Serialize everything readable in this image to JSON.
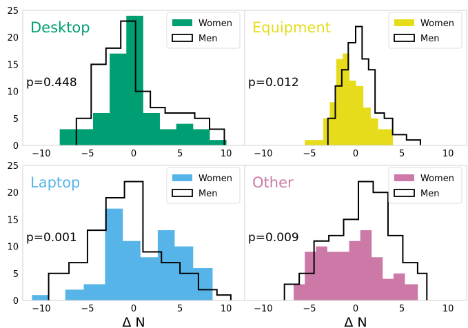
{
  "figure": {
    "xlabel": "Δ N"
  },
  "chart_data": [
    {
      "type": "histogram",
      "title": "Desktop",
      "annotation": "p=0.448",
      "color": "#009E73",
      "xlim": [
        -12,
        12
      ],
      "ylim": [
        0,
        25
      ],
      "xticks": [
        "−10",
        "−5",
        "0",
        "5",
        "10"
      ],
      "yticks": [
        "0",
        "5",
        "10",
        "15",
        "20",
        "25"
      ],
      "xlabel": "",
      "legend": [
        "Women",
        "Men"
      ],
      "legend_position": "top-right",
      "series": [
        {
          "name": "Women",
          "style": "filled",
          "edges": [
            -8,
            -6.2,
            -4.4,
            -2.6,
            -0.8,
            1,
            2.8,
            4.6,
            6.4,
            8.2,
            10
          ],
          "counts": [
            3,
            3,
            6,
            17,
            24,
            6,
            3,
            4,
            3,
            1
          ]
        },
        {
          "name": "Men",
          "style": "step",
          "edges": [
            -6.2,
            -4.6,
            -3,
            -1.4,
            0.2,
            1.8,
            3.4,
            5,
            6.6,
            8.2,
            9.8
          ],
          "counts": [
            5,
            15,
            18,
            23,
            10,
            7,
            6,
            6,
            5,
            3
          ]
        }
      ]
    },
    {
      "type": "histogram",
      "title": "Equipment",
      "annotation": "p=0.012",
      "color": "#E6DC1C",
      "xlim": [
        -12,
        12
      ],
      "ylim": [
        0,
        25
      ],
      "xticks": [
        "−10",
        "−5",
        "0",
        "5",
        "10"
      ],
      "yticks": [],
      "xlabel": "",
      "legend": [
        "Women",
        "Men"
      ],
      "legend_position": "top-right",
      "series": [
        {
          "name": "Women",
          "style": "filled",
          "edges": [
            -5.5,
            -3.5,
            -2.8,
            -2.1,
            -1.4,
            -0.7,
            0,
            0.8,
            1.6,
            2.4,
            4
          ],
          "counts": [
            1,
            5,
            8,
            16,
            17,
            12,
            11,
            7,
            5,
            3
          ]
        },
        {
          "name": "Men",
          "style": "step",
          "edges": [
            -3,
            -2.2,
            -1.5,
            -0.8,
            0,
            0.7,
            1.4,
            2.1,
            3.1,
            4,
            5.5,
            7
          ],
          "counts": [
            5,
            11,
            14,
            19,
            22,
            16,
            14,
            6,
            5,
            2,
            1
          ]
        }
      ]
    },
    {
      "type": "histogram",
      "title": "Laptop",
      "annotation": "p=0.001",
      "color": "#56B4E9",
      "xlim": [
        -12,
        12
      ],
      "ylim": [
        0,
        25
      ],
      "xticks": [
        "−10",
        "−5",
        "0",
        "5",
        "10"
      ],
      "yticks": [
        "0",
        "5",
        "10",
        "15",
        "20",
        "25"
      ],
      "xlabel": "Δ N",
      "legend": [
        "Women",
        "Men"
      ],
      "legend_position": "top-right",
      "series": [
        {
          "name": "Women",
          "style": "filled",
          "edges": [
            -11,
            -9.2,
            -7.4,
            -5.4,
            -3.1,
            -1.2,
            0.7,
            2.6,
            4.4,
            6.4,
            8.5
          ],
          "counts": [
            1,
            0,
            2,
            3,
            17,
            11,
            8,
            13,
            10,
            6
          ]
        },
        {
          "name": "Men",
          "style": "step",
          "edges": [
            -9.2,
            -7,
            -5,
            -3,
            -1,
            1,
            3,
            5,
            7,
            9,
            10.5
          ],
          "counts": [
            5,
            7,
            13,
            19,
            22,
            9,
            7,
            5,
            2,
            1
          ]
        }
      ]
    },
    {
      "type": "histogram",
      "title": "Other",
      "annotation": "p=0.009",
      "color": "#CC79A7",
      "xlim": [
        -12,
        12
      ],
      "ylim": [
        0,
        25
      ],
      "xticks": [
        "−10",
        "−5",
        "0",
        "5",
        "10"
      ],
      "yticks": [],
      "xlabel": "Δ N",
      "legend": [
        "Women",
        "Men"
      ],
      "legend_position": "top-right",
      "series": [
        {
          "name": "Women",
          "style": "filled",
          "edges": [
            -6.7,
            -5.5,
            -4.3,
            -3.1,
            -1.9,
            -0.7,
            0.5,
            1.7,
            2.9,
            4.1,
            5.3,
            6.7
          ],
          "counts": [
            3,
            9,
            10,
            9,
            9,
            11,
            13,
            8,
            4,
            5,
            3
          ]
        },
        {
          "name": "Men",
          "style": "step",
          "edges": [
            -7.7,
            -6.1,
            -4.5,
            -2.9,
            -1.3,
            0.3,
            1.9,
            3.5,
            5.1,
            6.7,
            7.7
          ],
          "counts": [
            3,
            5,
            11,
            12,
            15,
            22,
            20,
            12,
            7,
            5
          ]
        }
      ]
    }
  ]
}
